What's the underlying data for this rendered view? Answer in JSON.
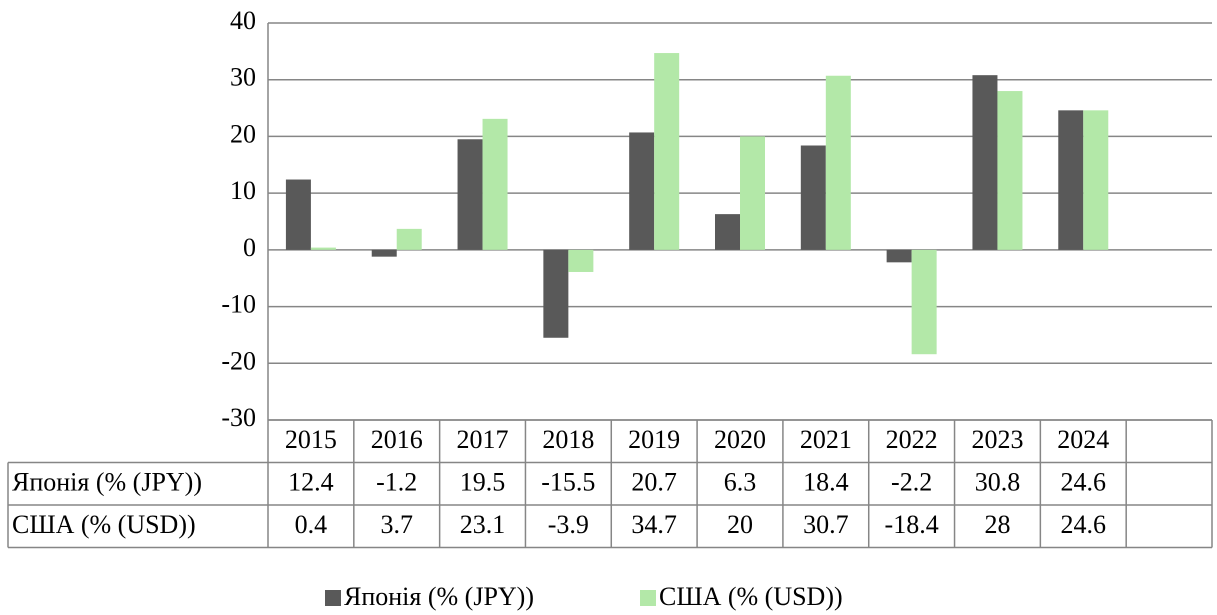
{
  "chart_data": {
    "type": "bar",
    "categories": [
      "2015",
      "2016",
      "2017",
      "2018",
      "2019",
      "2020",
      "2021",
      "2022",
      "2023",
      "2024",
      null
    ],
    "series": [
      {
        "name": "Японія  (% (JPY))",
        "color": "#595959",
        "values": [
          12.4,
          -1.2,
          19.5,
          -15.5,
          20.7,
          6.3,
          18.4,
          -2.2,
          30.8,
          24.6,
          null
        ]
      },
      {
        "name": "США (% (USD))",
        "color": "#b3e8a8",
        "values": [
          0.4,
          3.7,
          23.1,
          -3.9,
          34.7,
          20,
          30.7,
          -18.4,
          28,
          24.6,
          null
        ]
      }
    ],
    "ylim": [
      -30,
      40
    ],
    "yticks": [
      -30,
      -20,
      -10,
      0,
      10,
      20,
      30,
      40
    ],
    "grid": true,
    "legend": "bottom",
    "data_table": true
  }
}
